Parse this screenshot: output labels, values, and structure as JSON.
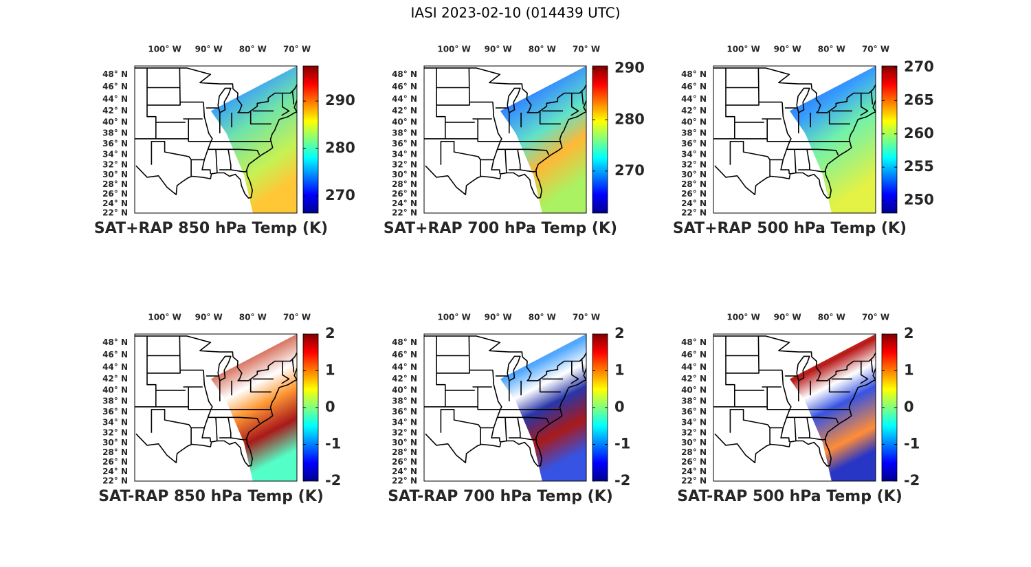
{
  "title": "IASI 2023-02-10 (014439 UTC)",
  "map_axes": {
    "xlim": [
      -106.8,
      -70
    ],
    "ylim": [
      22,
      49.3
    ],
    "xticks": [
      {
        "value": -100,
        "label": "100° W"
      },
      {
        "value": -90,
        "label": "90° W"
      },
      {
        "value": -80,
        "label": "80° W"
      },
      {
        "value": -70,
        "label": "70° W"
      }
    ],
    "yticks": [
      {
        "value": 22,
        "label": "22° N"
      },
      {
        "value": 24,
        "label": "24° N"
      },
      {
        "value": 26,
        "label": "26° N"
      },
      {
        "value": 28,
        "label": "28° N"
      },
      {
        "value": 30,
        "label": "30° N"
      },
      {
        "value": 32,
        "label": "32° N"
      },
      {
        "value": 34,
        "label": "34° N"
      },
      {
        "value": 36,
        "label": "36° N"
      },
      {
        "value": 38,
        "label": "38° N"
      },
      {
        "value": 40,
        "label": "40° N"
      },
      {
        "value": 42,
        "label": "42° N"
      },
      {
        "value": 44,
        "label": "44° N"
      },
      {
        "value": 46,
        "label": "46° N"
      },
      {
        "value": 48,
        "label": "48° N"
      }
    ]
  },
  "panels": [
    {
      "title": "SAT+RAP 850 hPa Temp (K)",
      "clim": [
        266.4,
        297.4
      ],
      "cticks": [
        270,
        280,
        290
      ]
    },
    {
      "title": "SAT+RAP 700 hPa Temp (K)",
      "clim": [
        261.8,
        290.5
      ],
      "cticks": [
        270,
        280,
        290
      ]
    },
    {
      "title": "SAT+RAP 500 hPa Temp (K)",
      "clim": [
        248.1,
        270.2
      ],
      "cticks": [
        250,
        255,
        260,
        265,
        270
      ]
    },
    {
      "title": "SAT-RAP 850 hPa Temp (K)",
      "clim": [
        -2,
        2
      ],
      "cticks": [
        -2,
        -1,
        0,
        1,
        2
      ]
    },
    {
      "title": "SAT-RAP 700 hPa Temp (K)",
      "clim": [
        -2,
        2
      ],
      "cticks": [
        -2,
        -1,
        0,
        1,
        2
      ]
    },
    {
      "title": "SAT-RAP 500 hPa Temp (K)",
      "clim": [
        -2,
        2
      ],
      "cticks": [
        -2,
        -1,
        0,
        1,
        2
      ]
    }
  ]
}
